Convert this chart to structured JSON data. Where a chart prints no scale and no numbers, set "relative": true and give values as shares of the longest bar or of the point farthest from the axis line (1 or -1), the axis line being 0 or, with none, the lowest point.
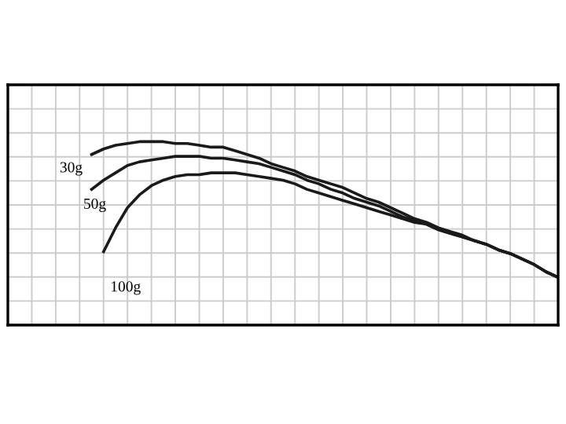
{
  "chart_data": {
    "type": "line",
    "relative": true,
    "grid": true,
    "legend": false,
    "marker": "none",
    "line_style": "solid",
    "categories": [
      null,
      null,
      null,
      null,
      null,
      null,
      null,
      null,
      null,
      null,
      null,
      null,
      null,
      null,
      null,
      null,
      null,
      null,
      null,
      null,
      null,
      null,
      null,
      null,
      null,
      null,
      null,
      null,
      null,
      null,
      null,
      null,
      null,
      null,
      null,
      null,
      null,
      null,
      null,
      null
    ],
    "series": [
      {
        "name": "30g",
        "color": "#1a1a1a",
        "values": [
          0.93,
          0.96,
          0.98,
          0.99,
          1.0,
          1.0,
          1.0,
          0.99,
          0.99,
          0.98,
          0.97,
          0.97,
          0.95,
          0.93,
          0.91,
          0.88,
          0.86,
          0.84,
          0.81,
          0.79,
          0.77,
          0.75,
          0.72,
          0.69,
          0.67,
          0.64,
          0.61,
          0.58,
          0.56,
          0.53,
          0.51,
          0.49,
          0.46,
          0.44,
          0.41,
          0.39,
          0.36,
          0.33,
          0.29,
          0.26
        ]
      },
      {
        "name": "50g",
        "color": "#1a1a1a",
        "values": [
          0.74,
          0.79,
          0.83,
          0.87,
          0.89,
          0.9,
          0.91,
          0.92,
          0.92,
          0.92,
          0.91,
          0.91,
          0.9,
          0.89,
          0.88,
          0.86,
          0.84,
          0.82,
          0.79,
          0.77,
          0.74,
          0.72,
          0.69,
          0.67,
          0.65,
          0.62,
          0.59,
          0.57,
          0.55,
          0.52,
          0.5,
          0.48,
          0.46,
          0.44,
          0.41,
          0.39,
          0.36,
          0.33,
          0.29,
          0.26
        ]
      },
      {
        "name": "100g",
        "color": "#1a1a1a",
        "values": [
          null,
          0.4,
          0.53,
          0.64,
          0.71,
          0.76,
          0.79,
          0.81,
          0.82,
          0.82,
          0.83,
          0.83,
          0.83,
          0.82,
          0.81,
          0.8,
          0.79,
          0.77,
          0.74,
          0.72,
          0.7,
          0.68,
          0.66,
          0.64,
          0.62,
          0.6,
          0.58,
          0.56,
          0.55,
          0.52,
          0.5,
          0.48,
          0.46,
          0.44,
          0.41,
          0.39,
          0.36,
          0.33,
          0.29,
          0.26
        ]
      }
    ]
  }
}
